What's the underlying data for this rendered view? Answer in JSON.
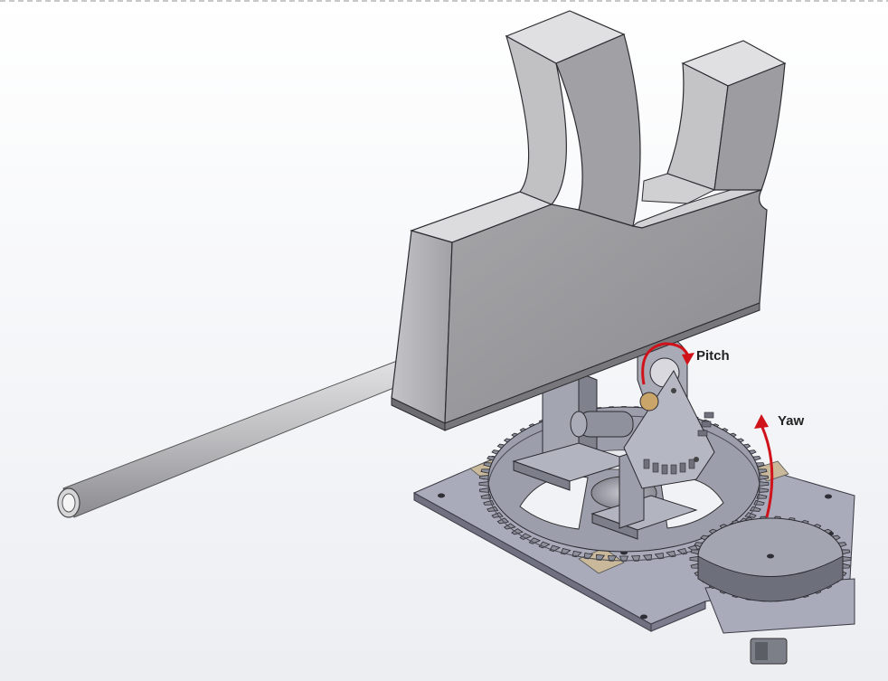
{
  "labels": {
    "pitch": "Pitch",
    "yaw": "Yaw"
  },
  "colors": {
    "body": "#9a9a9e",
    "body_light": "#c9c9cc",
    "body_dark": "#6e6e72",
    "gear": "#8e8e96",
    "plate": "#a7a9b8",
    "arrow": "#d0121b"
  }
}
